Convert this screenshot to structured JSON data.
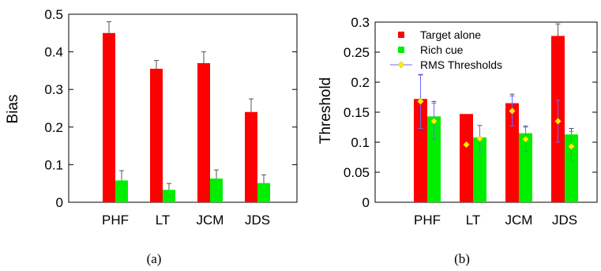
{
  "chart_data": [
    {
      "panel": "(a)",
      "type": "bar",
      "ylabel": "Bias",
      "ylim": [
        0,
        0.5
      ],
      "yticks": [
        "0",
        "0.1",
        "0.2",
        "0.3",
        "0.4",
        "0.5"
      ],
      "categories": [
        "PHF",
        "LT",
        "JCM",
        "JDS"
      ],
      "series": [
        {
          "color": "#ff0000",
          "values": [
            0.45,
            0.355,
            0.37,
            0.24
          ],
          "errors": [
            0.03,
            0.022,
            0.03,
            0.035
          ]
        },
        {
          "color": "#00ee00",
          "values": [
            0.058,
            0.033,
            0.063,
            0.051
          ],
          "errors": [
            0.026,
            0.017,
            0.023,
            0.022
          ]
        }
      ]
    },
    {
      "panel": "(b)",
      "type": "bar",
      "ylabel": "Threshold",
      "ylim": [
        0,
        0.3
      ],
      "yticks": [
        "0",
        "0.05",
        "0.1",
        "0.15",
        "0.2",
        "0.25",
        "0.3"
      ],
      "categories": [
        "PHF",
        "LT",
        "JCM",
        "JDS"
      ],
      "legend_position": "top-left",
      "series": [
        {
          "name": "Target alone",
          "color": "#ff0000",
          "values": [
            0.172,
            0.147,
            0.165,
            0.277
          ],
          "errors": [
            0.04,
            0.0,
            0.015,
            0.02
          ]
        },
        {
          "name": "Rich cue",
          "color": "#00ee00",
          "values": [
            0.143,
            0.108,
            0.115,
            0.113
          ],
          "errors": [
            0.025,
            0.02,
            0.012,
            0.01
          ]
        }
      ],
      "markers": {
        "name": "RMS Thresholds",
        "color": "#ffee00",
        "line_color": "#6a6aff",
        "values": [
          [
            0.168,
            0.135
          ],
          [
            0.096,
            0.106
          ],
          [
            0.152,
            0.105
          ],
          [
            0.135,
            0.093
          ]
        ],
        "errors": [
          [
            0.045,
            0.03
          ],
          [
            0.0,
            0.022
          ],
          [
            0.025,
            0.02
          ],
          [
            0.035,
            0.025
          ]
        ]
      }
    }
  ]
}
